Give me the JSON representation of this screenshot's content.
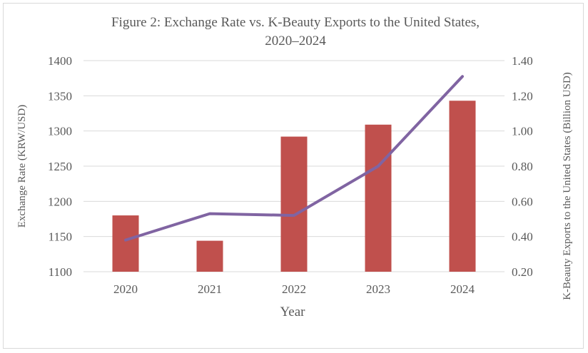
{
  "chart_data": {
    "type": "bar+line",
    "title_line1": "Figure 2: Exchange Rate vs. K-Beauty Exports to the United States,",
    "title_line2": "2020–2024",
    "xlabel": "Year",
    "ylabel_left": "Exchange Rate (KRW/USD)",
    "ylabel_right": "K-Beauty Exports to the United States (Billion USD)",
    "categories": [
      "2020",
      "2021",
      "2022",
      "2023",
      "2024"
    ],
    "left_axis": {
      "range": [
        1100,
        1400
      ],
      "ticks": [
        "1100",
        "1150",
        "1200",
        "1250",
        "1300",
        "1350",
        "1400"
      ]
    },
    "right_axis": {
      "range": [
        0.2,
        1.4
      ],
      "ticks": [
        "0.20",
        "0.40",
        "0.60",
        "0.80",
        "1.00",
        "1.20",
        "1.40"
      ]
    },
    "series": [
      {
        "name": "Exchange Rate",
        "type": "bar",
        "axis": "left",
        "color": "#c0504d",
        "values": [
          1180,
          1144,
          1292,
          1309,
          1343
        ]
      },
      {
        "name": "K-Beauty Exports",
        "type": "line",
        "axis": "right",
        "color": "#8064a2",
        "values": [
          0.38,
          0.53,
          0.52,
          0.8,
          1.31
        ]
      }
    ],
    "gridlines": true,
    "grid_color": "#d9d9d9"
  }
}
